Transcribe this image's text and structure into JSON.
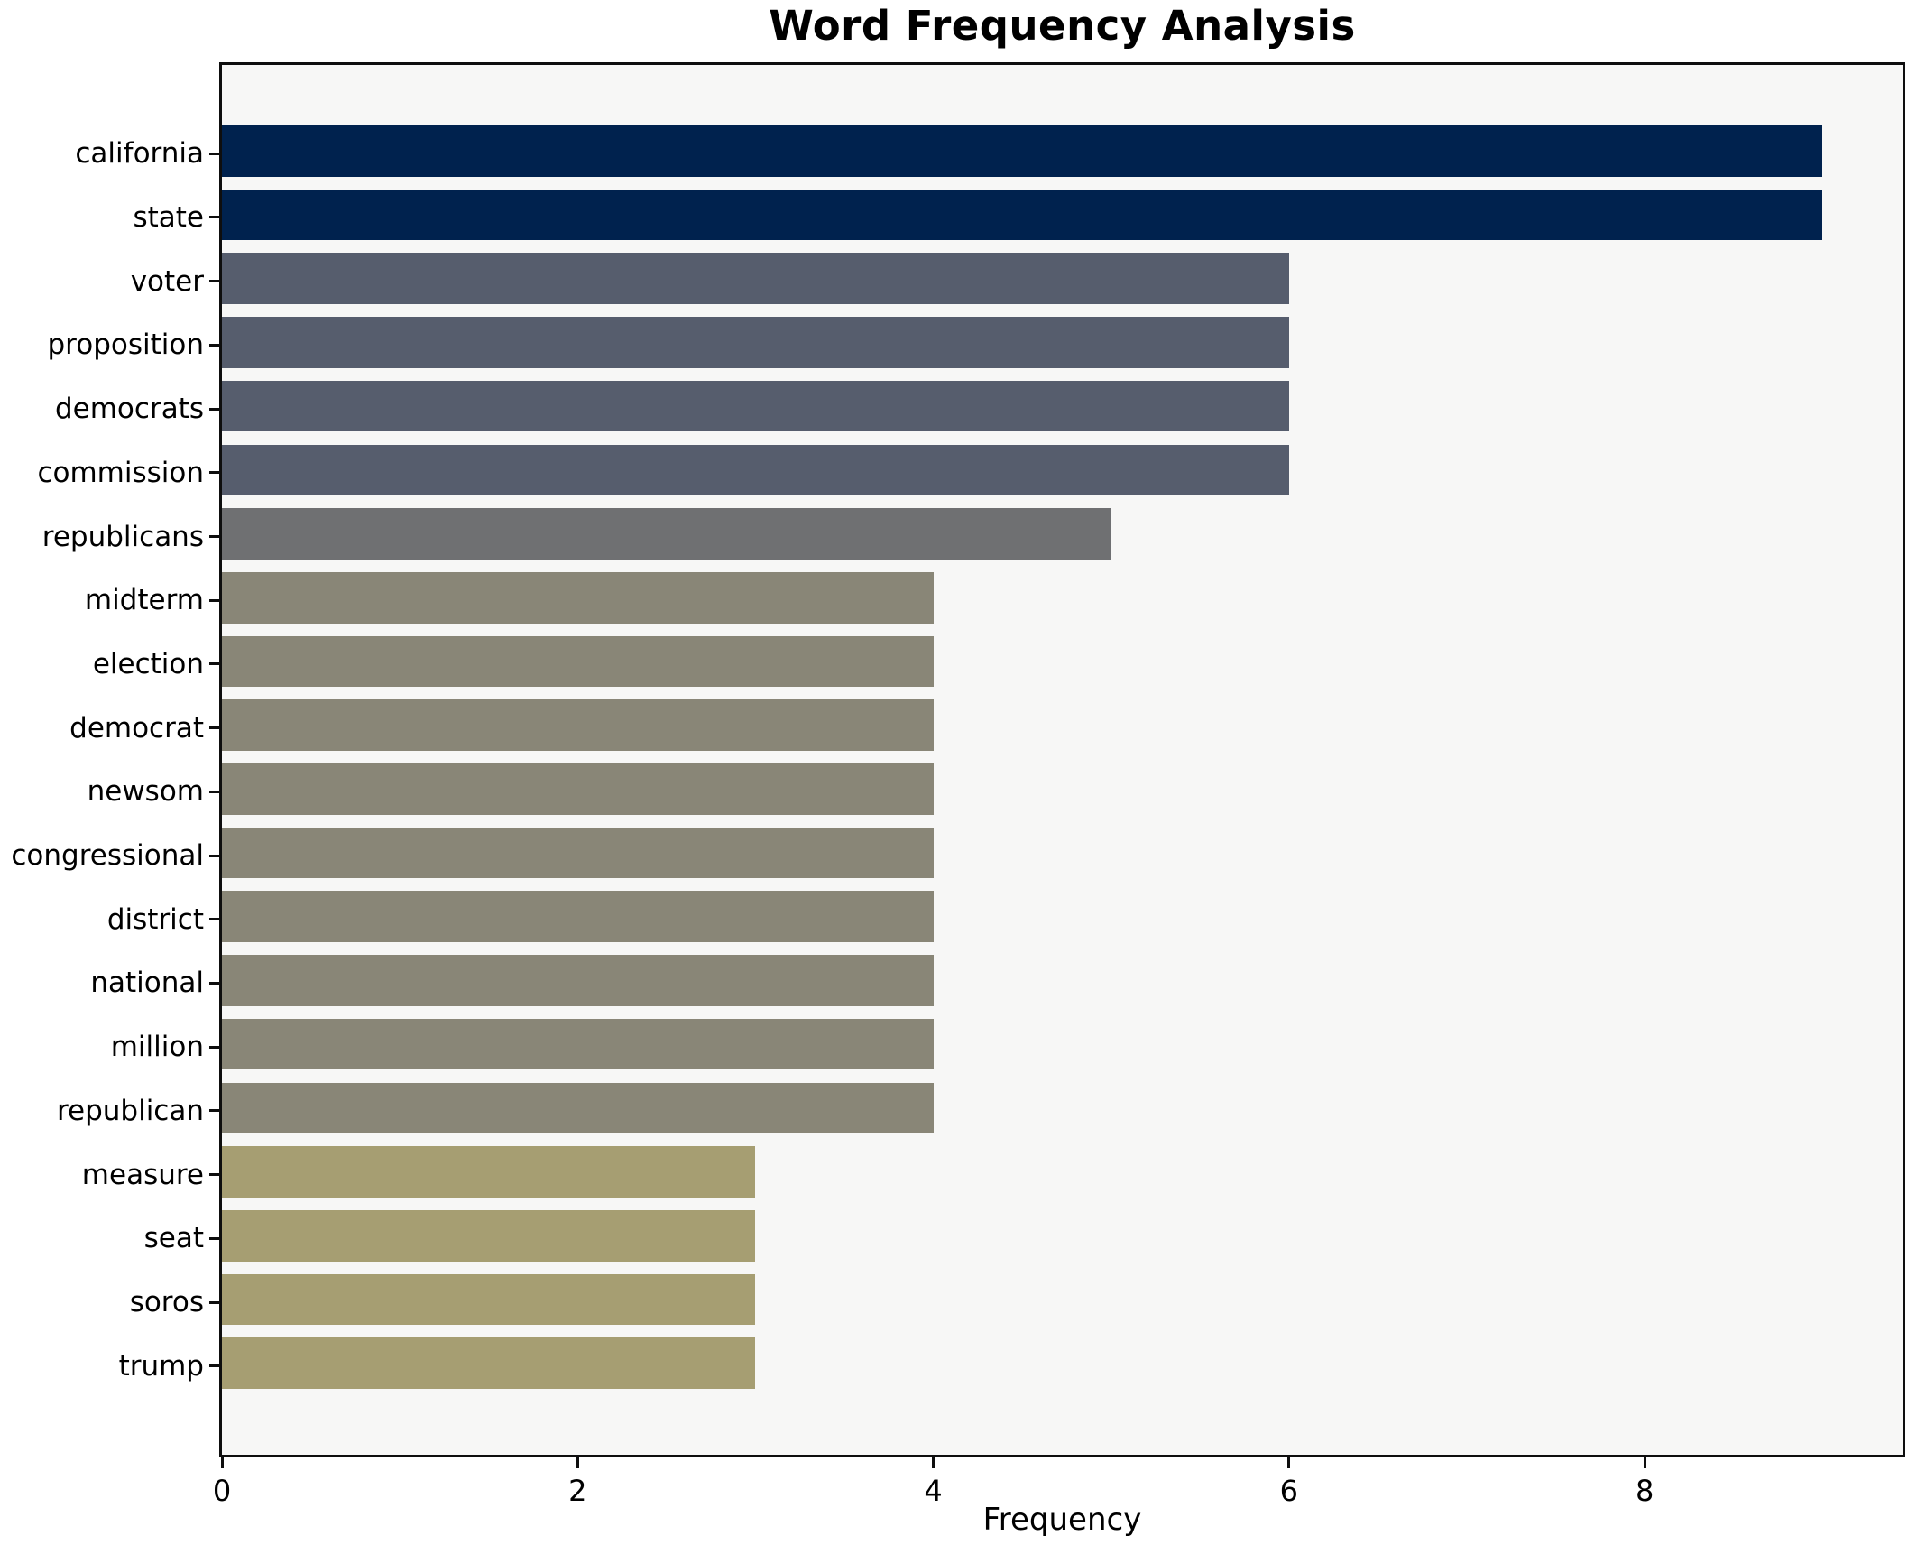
{
  "chart_data": {
    "type": "bar",
    "orientation": "horizontal",
    "title": "Word Frequency Analysis",
    "xlabel": "Frequency",
    "ylabel": "",
    "categories": [
      "california",
      "state",
      "voter",
      "proposition",
      "democrats",
      "commission",
      "republicans",
      "midterm",
      "election",
      "democrat",
      "newsom",
      "congressional",
      "district",
      "national",
      "million",
      "republican",
      "measure",
      "seat",
      "soros",
      "trump"
    ],
    "values": [
      9,
      9,
      6,
      6,
      6,
      6,
      5,
      4,
      4,
      4,
      4,
      4,
      4,
      4,
      4,
      4,
      3,
      3,
      3,
      3
    ],
    "bar_colors": [
      "#00224e",
      "#00224e",
      "#565d6d",
      "#565d6d",
      "#565d6d",
      "#565d6d",
      "#6f7072",
      "#898677",
      "#898677",
      "#898677",
      "#898677",
      "#898677",
      "#898677",
      "#898677",
      "#898677",
      "#898677",
      "#a69e72",
      "#a69e72",
      "#a69e72",
      "#a69e72"
    ],
    "xlim": [
      0,
      9.45
    ],
    "xticks": [
      "0",
      "2",
      "4",
      "6",
      "8"
    ],
    "xtick_values": [
      0,
      2,
      4,
      6,
      8
    ],
    "grid": false,
    "legend": null,
    "plot_background": "#f7f7f6",
    "figure_background": "#ffffff",
    "spine_color": "#0e0e0e",
    "text_color": "#000000"
  }
}
